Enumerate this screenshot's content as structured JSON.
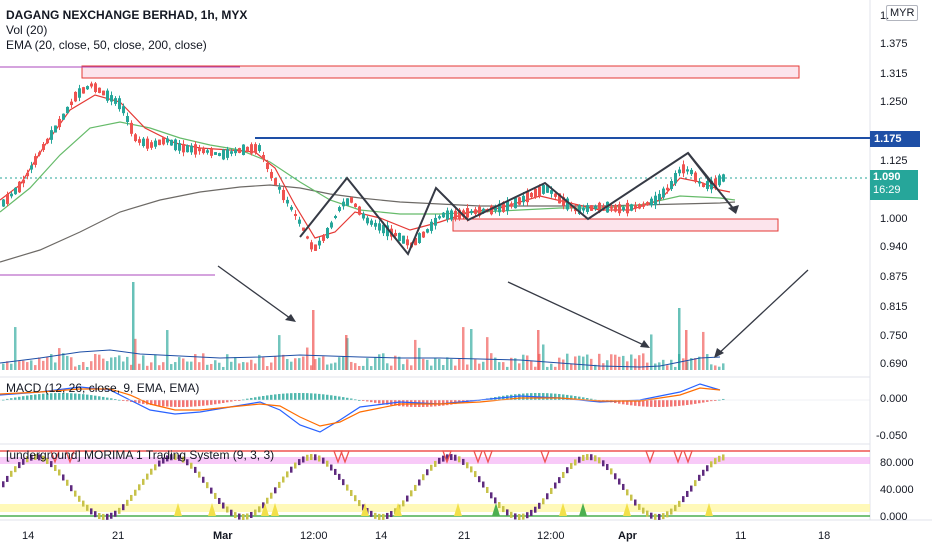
{
  "header": {
    "symbol_title": "DAGANG NEXCHANGE BERHAD, 1h, MYX",
    "volume_label": "Vol (20)",
    "ema_label": "EMA (20, close, 50, close, 200, close)",
    "currency": "MYR"
  },
  "price_axis": {
    "ticks": [
      "1.375",
      "1.315",
      "1.250",
      "1.125",
      "1.000",
      "0.940",
      "0.875",
      "0.815",
      "0.750",
      "0.690"
    ],
    "top_tick": "1.",
    "reference_price": "1.175",
    "current_price": "1.090",
    "countdown": "16:29"
  },
  "macd_panel": {
    "label": "MACD (12, 26, close, 9, EMA, EMA)",
    "ticks": [
      "0.000",
      "-0.050"
    ]
  },
  "morima_panel": {
    "label": "[underground] MORIMA 1 Trading System (9, 3, 3)",
    "ticks": [
      "80.000",
      "40.000",
      "0.000"
    ]
  },
  "time_axis": {
    "ticks": [
      "14",
      "21",
      "Mar",
      "12:00",
      "14",
      "21",
      "12:00",
      "Apr",
      "11",
      "18"
    ]
  },
  "colors": {
    "up": "#26a69a",
    "down": "#ef5350",
    "ema_fast": "#e53935",
    "ema_mid": "#66bb6a",
    "ema_slow": "#6d6a66",
    "reference_line": "#1e4fa6",
    "zone_fill": "#fce4ec",
    "zone_stroke": "#e53935",
    "overbought_band": "#f3a6f3",
    "oversold_band": "#fff7a8"
  }
}
